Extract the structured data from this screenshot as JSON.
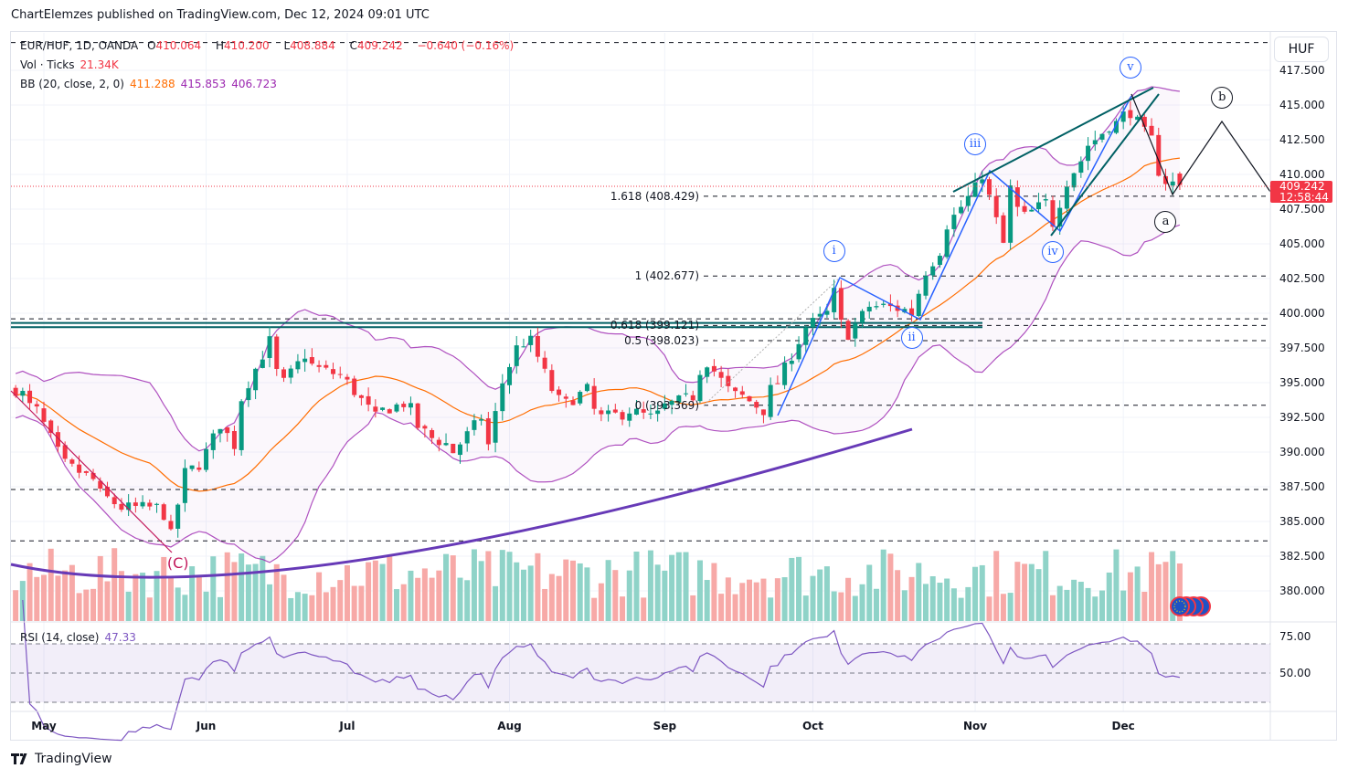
{
  "publisher": "ChartElemzes published on TradingView.com, Dec 12, 2024 09:01 UTC",
  "legend": {
    "symbol": "EUR/HUF, 1D, OANDA",
    "o_label": "O",
    "o": "410.064",
    "h_label": "H",
    "h": "410.200",
    "l_label": "L",
    "l": "408.884",
    "c_label": "C",
    "c": "409.242",
    "change": "−0.640 (−0.16%)",
    "vol_label": "Vol · Ticks",
    "vol": "21.34K",
    "bb_label": "BB (20, close, 2, 0)",
    "bb_basis": "411.288",
    "bb_upper": "415.853",
    "bb_lower": "406.723",
    "rsi_label": "RSI (14, close)",
    "rsi": "47.33"
  },
  "currency": "HUF",
  "current_price": {
    "price": "409.242",
    "countdown": "12:58:44"
  },
  "brand": "TradingView",
  "colors": {
    "up": "#089981",
    "down": "#f23645",
    "vol_up": "#8fd3c8",
    "vol_down": "#f7a9a7",
    "bb_basis": "#ff6d00",
    "bb_band": "#9c27b0",
    "rsi": "#7e57c2",
    "wave": "#2962ff",
    "channel": "#006064",
    "arc": "#673ab7"
  },
  "chart_data": {
    "type": "candlestick",
    "symbol": "EUR/HUF",
    "timeframe": "1D",
    "y_ticks": [
      "417.500",
      "415.000",
      "412.500",
      "410.000",
      "407.500",
      "405.000",
      "402.500",
      "400.000",
      "397.500",
      "395.000",
      "392.500",
      "390.000",
      "387.500",
      "385.000",
      "382.500",
      "380.000"
    ],
    "y_tick_values": [
      417.5,
      415,
      412.5,
      410,
      407.5,
      405,
      402.5,
      400,
      397.5,
      395,
      392.5,
      390,
      387.5,
      385,
      382.5,
      380
    ],
    "rsi_ticks": [
      "75.00",
      "50.00"
    ],
    "rsi_tick_values": [
      75,
      50
    ],
    "months": [
      {
        "label": "May",
        "date": "2024-05-01"
      },
      {
        "label": "Jun",
        "date": "2024-06-03"
      },
      {
        "label": "Jul",
        "date": "2024-07-01"
      },
      {
        "label": "Aug",
        "date": "2024-08-01"
      },
      {
        "label": "Sep",
        "date": "2024-09-02"
      },
      {
        "label": "Oct",
        "date": "2024-10-01"
      },
      {
        "label": "Nov",
        "date": "2024-11-01"
      },
      {
        "label": "Dec",
        "date": "2024-12-02"
      }
    ],
    "close_series": [
      [
        "2024-04-25",
        394.5
      ],
      [
        "2024-04-30",
        393
      ],
      [
        "2024-05-03",
        390
      ],
      [
        "2024-05-10",
        388
      ],
      [
        "2024-05-16",
        386
      ],
      [
        "2024-05-23",
        386
      ],
      [
        "2024-05-27",
        384
      ],
      [
        "2024-05-29",
        388.5
      ],
      [
        "2024-06-03",
        390
      ],
      [
        "2024-06-05",
        392
      ],
      [
        "2024-06-07",
        390.5
      ],
      [
        "2024-06-11",
        395
      ],
      [
        "2024-06-14",
        398
      ],
      [
        "2024-06-18",
        395
      ],
      [
        "2024-06-21",
        397
      ],
      [
        "2024-06-25",
        396
      ],
      [
        "2024-07-01",
        395
      ],
      [
        "2024-07-05",
        392.5
      ],
      [
        "2024-07-11",
        393.5
      ],
      [
        "2024-07-17",
        391
      ],
      [
        "2024-07-22",
        390
      ],
      [
        "2024-07-26",
        392.5
      ],
      [
        "2024-07-29",
        390.5
      ],
      [
        "2024-07-31",
        395
      ],
      [
        "2024-08-02",
        397.5
      ],
      [
        "2024-08-06",
        398
      ],
      [
        "2024-08-09",
        394.5
      ],
      [
        "2024-08-13",
        393.5
      ],
      [
        "2024-08-16",
        394.5
      ],
      [
        "2024-08-20",
        392.5
      ],
      [
        "2024-08-26",
        393
      ],
      [
        "2024-08-29",
        392.5
      ],
      [
        "2024-09-03",
        393.5
      ],
      [
        "2024-09-06",
        394
      ],
      [
        "2024-09-10",
        396.5
      ],
      [
        "2024-09-13",
        394.5
      ],
      [
        "2024-09-17",
        394
      ],
      [
        "2024-09-20",
        393
      ],
      [
        "2024-09-24",
        395
      ],
      [
        "2024-09-27",
        398
      ],
      [
        "2024-10-03",
        400
      ],
      [
        "2024-10-04",
        401.5
      ],
      [
        "2024-10-08",
        398.5
      ],
      [
        "2024-10-11",
        400.5
      ],
      [
        "2024-10-15",
        400.5
      ],
      [
        "2024-10-21",
        400
      ],
      [
        "2024-10-23",
        403
      ],
      [
        "2024-10-25",
        404.5
      ],
      [
        "2024-10-29",
        407
      ],
      [
        "2024-11-01",
        409
      ],
      [
        "2024-11-04",
        410
      ],
      [
        "2024-11-07",
        405
      ],
      [
        "2024-11-08",
        409
      ],
      [
        "2024-11-12",
        407
      ],
      [
        "2024-11-15",
        408
      ],
      [
        "2024-11-18",
        406.5
      ],
      [
        "2024-11-20",
        409.5
      ],
      [
        "2024-11-22",
        411
      ],
      [
        "2024-11-26",
        412.5
      ],
      [
        "2024-11-28",
        413.5
      ],
      [
        "2024-12-03",
        414.5
      ],
      [
        "2024-12-05",
        413
      ],
      [
        "2024-12-06",
        412.5
      ],
      [
        "2024-12-10",
        409.5
      ],
      [
        "2024-12-12",
        409.242
      ]
    ],
    "last_candle": {
      "open": 410.064,
      "high": 410.2,
      "low": 408.884,
      "close": 409.242
    },
    "fib_levels": [
      {
        "label": "1.618 (408.429)",
        "price": 408.429
      },
      {
        "label": "1 (402.677)",
        "price": 402.677
      },
      {
        "label": "0.618 (399.121)",
        "price": 399.121
      },
      {
        "label": "0.5 (398.023)",
        "price": 398.023
      },
      {
        "label": "0 (393.369)",
        "price": 393.369
      }
    ],
    "horizontal_levels": [
      419.5,
      387.3,
      383.6,
      399.6
    ],
    "support_lines": [
      399.3,
      399.0
    ],
    "wave_labels": [
      {
        "text": "i",
        "date": "2024-10-04",
        "price": 404.5,
        "style": "blue"
      },
      {
        "text": "ii",
        "date": "2024-10-21",
        "price": 398.2,
        "style": "blue"
      },
      {
        "text": "iii",
        "date": "2024-11-01",
        "price": 412.2,
        "style": "blue"
      },
      {
        "text": "iv",
        "date": "2024-11-18",
        "price": 404.4,
        "style": "blue"
      },
      {
        "text": "v",
        "date": "2024-12-03",
        "price": 417.7,
        "style": "blue"
      },
      {
        "text": "a",
        "date": "2024-12-10",
        "price": 406.6,
        "style": "black"
      },
      {
        "text": "b",
        "date": "2024-12-20",
        "price": 415.5,
        "style": "black"
      },
      {
        "text": "(C)",
        "date": "2024-05-28",
        "price": 382.0,
        "style": "c"
      }
    ],
    "rsi_bands": {
      "upper": 70,
      "middle": 50,
      "lower": 30
    }
  }
}
